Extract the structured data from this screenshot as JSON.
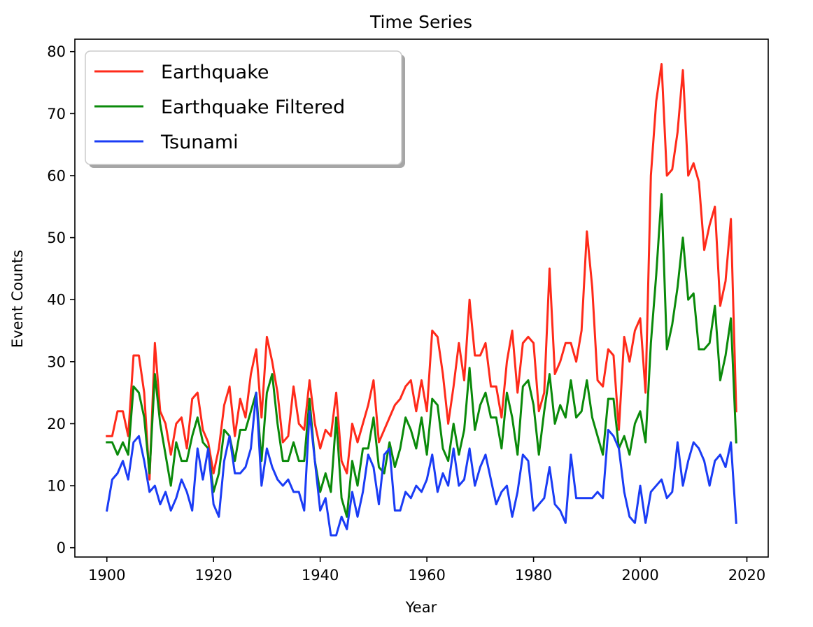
{
  "chart_data": {
    "type": "line",
    "title": "Time Series",
    "xlabel": "Year",
    "ylabel": "Event Counts",
    "xlim": [
      1894,
      2024
    ],
    "ylim": [
      -1.5,
      82
    ],
    "xticks": [
      1900,
      1920,
      1940,
      1960,
      1980,
      2000,
      2020
    ],
    "yticks": [
      0,
      10,
      20,
      30,
      40,
      50,
      60,
      70,
      80
    ],
    "grid": false,
    "legend_position": "top-left",
    "x_start": 1900,
    "series": [
      {
        "name": "Earthquake",
        "color": "#ff2a1a",
        "values": [
          18,
          18,
          22,
          22,
          18,
          31,
          31,
          25,
          11,
          33,
          22,
          20,
          15,
          20,
          21,
          16,
          24,
          25,
          19,
          17,
          12,
          16,
          23,
          26,
          18,
          24,
          21,
          28,
          32,
          21,
          34,
          30,
          25,
          17,
          18,
          26,
          20,
          19,
          27,
          20,
          16,
          19,
          18,
          25,
          14,
          12,
          20,
          17,
          20,
          23,
          27,
          17,
          19,
          21,
          23,
          24,
          26,
          27,
          22,
          27,
          22,
          35,
          34,
          28,
          20,
          26,
          33,
          27,
          40,
          31,
          31,
          33,
          26,
          26,
          21,
          30,
          35,
          25,
          33,
          34,
          33,
          22,
          25,
          45,
          28,
          30,
          33,
          33,
          30,
          35,
          51,
          42,
          27,
          26,
          32,
          31,
          19,
          34,
          30,
          35,
          37,
          25,
          60,
          72,
          78,
          60,
          61,
          67,
          77,
          60,
          62,
          59,
          48,
          52,
          55,
          39,
          43,
          53,
          22
        ]
      },
      {
        "name": "Earthquake Filtered",
        "color": "#0a8a0a",
        "values": [
          17,
          17,
          15,
          17,
          15,
          26,
          25,
          21,
          12,
          28,
          20,
          15,
          10,
          17,
          14,
          14,
          18,
          21,
          17,
          16,
          9,
          12,
          19,
          18,
          14,
          19,
          19,
          22,
          25,
          14,
          25,
          28,
          20,
          14,
          14,
          17,
          14,
          14,
          24,
          14,
          9,
          12,
          9,
          21,
          8,
          5,
          14,
          10,
          16,
          16,
          21,
          13,
          12,
          17,
          13,
          16,
          21,
          19,
          16,
          21,
          15,
          24,
          23,
          16,
          14,
          20,
          15,
          19,
          29,
          19,
          23,
          25,
          21,
          21,
          16,
          25,
          21,
          15,
          26,
          27,
          23,
          15,
          22,
          28,
          20,
          23,
          21,
          27,
          21,
          22,
          27,
          21,
          18,
          15,
          24,
          24,
          16,
          18,
          15,
          20,
          22,
          17,
          33,
          44,
          57,
          32,
          36,
          42,
          50,
          40,
          41,
          32,
          32,
          33,
          39,
          27,
          31,
          37,
          17
        ]
      },
      {
        "name": "Tsunami",
        "color": "#1a3cf5",
        "values": [
          6,
          11,
          12,
          14,
          11,
          17,
          18,
          14,
          9,
          10,
          7,
          9,
          6,
          8,
          11,
          9,
          6,
          16,
          11,
          16,
          7,
          5,
          14,
          18,
          12,
          12,
          13,
          16,
          25,
          10,
          16,
          13,
          11,
          10,
          11,
          9,
          9,
          6,
          22,
          14,
          6,
          8,
          2,
          2,
          5,
          3,
          9,
          5,
          9,
          15,
          13,
          7,
          15,
          16,
          6,
          6,
          9,
          8,
          10,
          9,
          11,
          15,
          9,
          12,
          10,
          16,
          10,
          11,
          16,
          10,
          13,
          15,
          11,
          7,
          9,
          10,
          5,
          9,
          15,
          14,
          6,
          7,
          8,
          13,
          7,
          6,
          4,
          15,
          8,
          8,
          8,
          8,
          9,
          8,
          19,
          18,
          16,
          9,
          5,
          4,
          10,
          4,
          9,
          10,
          11,
          8,
          9,
          17,
          10,
          14,
          17,
          16,
          14,
          10,
          14,
          15,
          13,
          17,
          4
        ]
      }
    ]
  }
}
